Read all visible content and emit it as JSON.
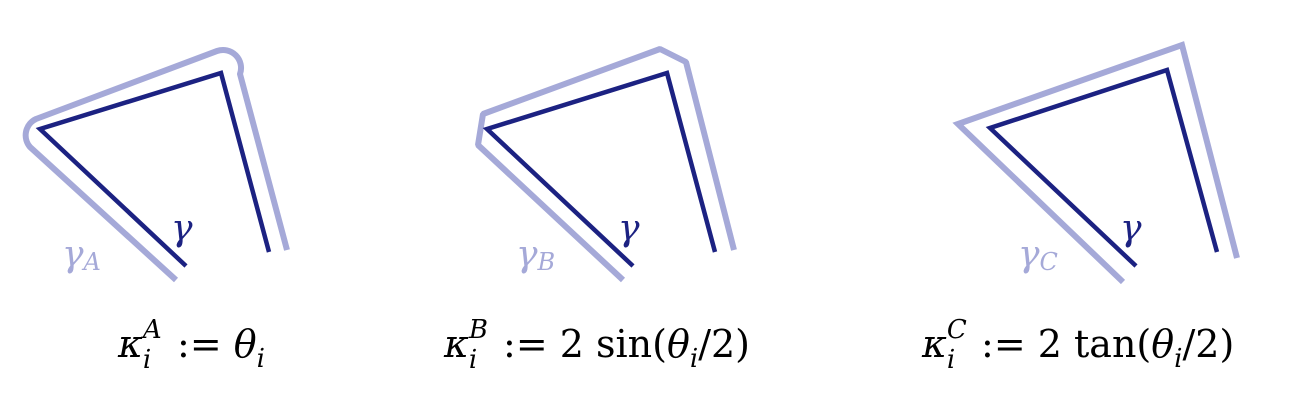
{
  "colors": {
    "curve": "#1c2282",
    "offset": "#a5a9d8",
    "text": "#000000"
  },
  "panels": [
    {
      "id": "A",
      "curve_label": "γ",
      "offset_label_base": "γ",
      "offset_label_sub": "A",
      "offset_corner_style": "round",
      "formula": {
        "symbol": "κ",
        "superscript": "A",
        "subscript": "i",
        "definition_sign": ":=",
        "rhs_prefix": "",
        "rhs_func": "",
        "rhs_theta": "θ",
        "rhs_theta_sub": "i",
        "rhs_suffix": ""
      }
    },
    {
      "id": "B",
      "curve_label": "γ",
      "offset_label_base": "γ",
      "offset_label_sub": "B",
      "offset_corner_style": "bevel",
      "formula": {
        "symbol": "κ",
        "superscript": "B",
        "subscript": "i",
        "definition_sign": ":=",
        "rhs_prefix": "2 sin(",
        "rhs_func": "sin",
        "rhs_theta": "θ",
        "rhs_theta_sub": "i",
        "rhs_suffix": "/2)"
      }
    },
    {
      "id": "C",
      "curve_label": "γ",
      "offset_label_base": "γ",
      "offset_label_sub": "C",
      "offset_corner_style": "miter",
      "formula": {
        "symbol": "κ",
        "superscript": "C",
        "subscript": "i",
        "definition_sign": ":=",
        "rhs_prefix": "2 tan(",
        "rhs_func": "tan",
        "rhs_theta": "θ",
        "rhs_theta_sub": "i",
        "rhs_suffix": "/2)"
      }
    }
  ]
}
